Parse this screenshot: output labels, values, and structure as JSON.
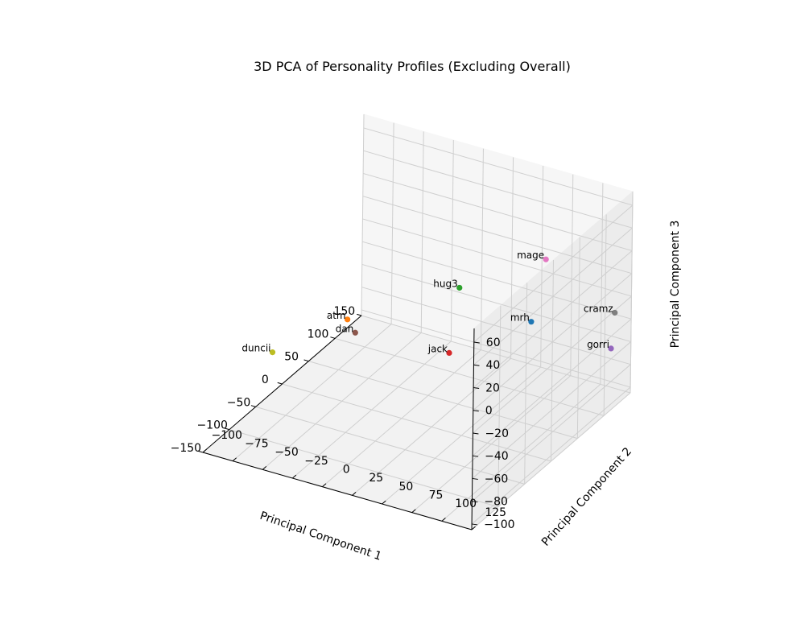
{
  "chart_data": {
    "type": "scatter",
    "projection": "3d",
    "title": "3D PCA of Personality Profiles (Excluding Overall)",
    "xlabel": "Principal Component 1",
    "ylabel": "Principal Component 2",
    "zlabel": "Principal Component 3",
    "xlim": [
      -150,
      150
    ],
    "ylim": [
      -100,
      125
    ],
    "zlim": [
      -105,
      72
    ],
    "xticks": [
      -150,
      -100,
      -50,
      0,
      50,
      100,
      150
    ],
    "yticks": [
      -100,
      -75,
      -50,
      -25,
      0,
      25,
      50,
      75,
      100,
      125
    ],
    "zticks": [
      -100,
      -80,
      -60,
      -40,
      -20,
      0,
      20,
      40,
      60
    ],
    "xtick_labels": [
      "−150",
      "−100",
      "−50",
      "0",
      "50",
      "100",
      "150"
    ],
    "ytick_labels": [
      "−100",
      "−75",
      "−50",
      "−25",
      "0",
      "25",
      "50",
      "75",
      "100",
      "125"
    ],
    "ztick_labels": [
      "−100",
      "−80",
      "−60",
      "−40",
      "−20",
      "0",
      "20",
      "40",
      "60"
    ],
    "grid": true,
    "points": [
      {
        "label": "mrh",
        "x": 85,
        "y": 70,
        "z": -33,
        "color": "#1f77b4"
      },
      {
        "label": "atm",
        "x": -60,
        "y": -20,
        "z": 0,
        "color": "#ff7f0e"
      },
      {
        "label": "hug3",
        "x": -30,
        "y": 60,
        "z": 40,
        "color": "#2ca02c"
      },
      {
        "label": "jack",
        "x": 55,
        "y": 15,
        "z": -65,
        "color": "#d62728"
      },
      {
        "label": "gorri",
        "x": 135,
        "y": 115,
        "z": -63,
        "color": "#9467bd"
      },
      {
        "label": "dan",
        "x": -125,
        "y": 15,
        "z": 25,
        "color": "#8c564b"
      },
      {
        "label": "mage",
        "x": 20,
        "y": 110,
        "z": 60,
        "color": "#e377c2"
      },
      {
        "label": "cramz",
        "x": 130,
        "y": 120,
        "z": -28,
        "color": "#7f7f7f"
      },
      {
        "label": "duncii",
        "x": -65,
        "y": -80,
        "z": -45,
        "color": "#bcbd22"
      }
    ]
  }
}
